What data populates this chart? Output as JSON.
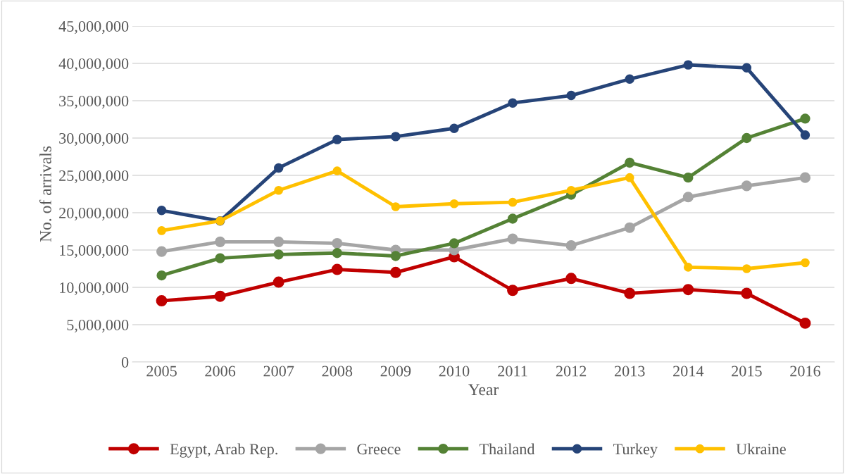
{
  "chart_data": {
    "type": "line",
    "xlabel": "Year",
    "ylabel": "No. of arrivals",
    "categories": [
      "2005",
      "2006",
      "2007",
      "2008",
      "2009",
      "2010",
      "2011",
      "2012",
      "2013",
      "2014",
      "2015",
      "2016"
    ],
    "ylim": [
      0,
      45000000
    ],
    "yticks": [
      {
        "value": 0,
        "label": "0"
      },
      {
        "value": 5000000,
        "label": "5,000,000"
      },
      {
        "value": 10000000,
        "label": "10,000,000"
      },
      {
        "value": 15000000,
        "label": "15,000,000"
      },
      {
        "value": 20000000,
        "label": "20,000,000"
      },
      {
        "value": 25000000,
        "label": "25,000,000"
      },
      {
        "value": 30000000,
        "label": "30,000,000"
      },
      {
        "value": 35000000,
        "label": "35,000,000"
      },
      {
        "value": 40000000,
        "label": "40,000,000"
      },
      {
        "value": 45000000,
        "label": "45,000,000"
      }
    ],
    "grid": "y",
    "legend": "bottom",
    "marker": "circle",
    "line_style": "solid",
    "series": [
      {
        "name": "Egypt, Arab Rep.",
        "color": "#c00000",
        "values": [
          8200000,
          8800000,
          10700000,
          12400000,
          12000000,
          14100000,
          9600000,
          11200000,
          9200000,
          9700000,
          9200000,
          5200000
        ]
      },
      {
        "name": "Greece",
        "color": "#a5a5a5",
        "values": [
          14800000,
          16100000,
          16100000,
          15900000,
          15000000,
          15000000,
          16500000,
          15600000,
          18000000,
          22100000,
          23600000,
          24700000
        ]
      },
      {
        "name": "Thailand",
        "color": "#548235",
        "values": [
          11600000,
          13900000,
          14400000,
          14600000,
          14200000,
          15900000,
          19200000,
          22400000,
          26700000,
          24700000,
          30000000,
          32600000
        ]
      },
      {
        "name": "Turkey",
        "color": "#264478",
        "values": [
          20300000,
          18900000,
          26000000,
          29800000,
          30200000,
          31300000,
          34700000,
          35700000,
          37900000,
          39800000,
          39400000,
          30400000
        ]
      },
      {
        "name": "Ukraine",
        "color": "#ffc000",
        "values": [
          17600000,
          18900000,
          23000000,
          25600000,
          20800000,
          21200000,
          21400000,
          23000000,
          24700000,
          12700000,
          12500000,
          13300000
        ]
      }
    ]
  }
}
